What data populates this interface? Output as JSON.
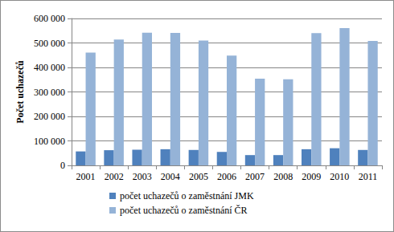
{
  "chart_data": {
    "type": "bar",
    "y_label": "Počet uchazečů",
    "categories": [
      "2001",
      "2002",
      "2003",
      "2004",
      "2005",
      "2006",
      "2007",
      "2008",
      "2009",
      "2010",
      "2011"
    ],
    "series": [
      {
        "name": "počet uchazečů o zaměstnání JMK",
        "color": "#4f81bd",
        "values": [
          57000,
          62000,
          64000,
          66000,
          63000,
          55000,
          42000,
          42000,
          66000,
          70000,
          63000
        ]
      },
      {
        "name": "počet uchazečů o zaměstnání ČR",
        "color": "#95b3d7",
        "values": [
          461000,
          514000,
          542000,
          541000,
          510000,
          448000,
          354000,
          352000,
          540000,
          561000,
          508000
        ]
      }
    ],
    "ylim": [
      0,
      600000
    ],
    "yticks": [
      0,
      {
        "value": 100000,
        "label": "100 000"
      },
      {
        "value": 200000,
        "label": "200 000"
      },
      {
        "value": 300000,
        "label": "300 000"
      },
      {
        "value": 400000,
        "label": "400 000"
      },
      {
        "value": 500000,
        "label": "500 000"
      },
      {
        "value": 600000,
        "label": "600 000"
      }
    ],
    "grid": true,
    "legend": "bottom"
  }
}
